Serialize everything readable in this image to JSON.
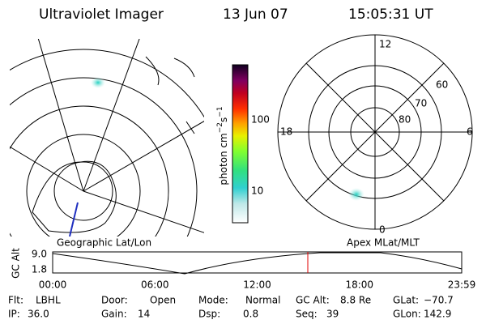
{
  "header": {
    "title": "Ultraviolet Imager",
    "date": "13 Jun 07",
    "time": "15:05:31 UT"
  },
  "colorbar": {
    "unit": [
      "photon cm",
      "−2",
      "s",
      "−1"
    ],
    "ticks": [
      "100",
      "10"
    ]
  },
  "left_map": {
    "caption": "Geographic Lat/Lon"
  },
  "right_map": {
    "caption": "Apex MLat/MLT",
    "lat_labels": [
      "60",
      "70",
      "80"
    ],
    "mlt_labels": [
      "12",
      "18",
      "6",
      "0"
    ]
  },
  "timeline": {
    "ylabel": "GC Alt",
    "yticks": [
      "9.0",
      "1.8"
    ],
    "xticks": [
      "00:00",
      "06:00",
      "12:00",
      "18:00",
      "23:59"
    ]
  },
  "footer": {
    "rows": [
      [
        {
          "label": "Flt:",
          "value": "LBHL"
        },
        {
          "label": "Door:",
          "value": "Open"
        },
        {
          "label": "Mode:",
          "value": "Normal"
        },
        {
          "label": "GC Alt:",
          "value": "8.8 Re"
        },
        {
          "label": "GLat:",
          "value": "−70.7"
        }
      ],
      [
        {
          "label": "IP:",
          "value": "36.0"
        },
        {
          "label": "Gain:",
          "value": "14"
        },
        {
          "label": "Dsp:",
          "value": "0.8"
        },
        {
          "label": "Seq:",
          "value": "39"
        },
        {
          "label": "GLon:",
          "value": "142.9"
        }
      ]
    ]
  }
}
